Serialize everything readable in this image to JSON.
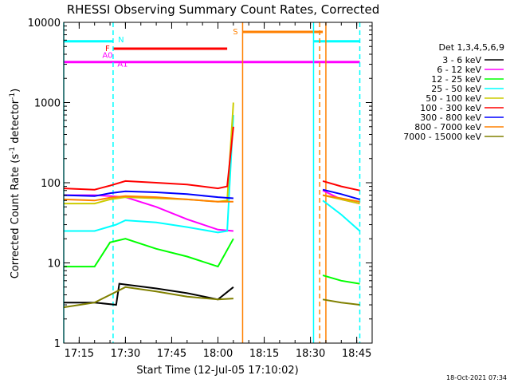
{
  "chart_data": {
    "type": "line",
    "title": "RHESSI Observing Summary Count Rates, Corrected",
    "xlabel": "Start Time (12-Jul-05 17:10:02)",
    "ylabel_prefix": "Corrected Count Rate (s",
    "ylabel_mid": " detector",
    "ylabel_suffix": ")",
    "ylabel_sup": "-1",
    "y_scale": "log",
    "ylim": [
      1,
      10000
    ],
    "xlim": [
      "17:10",
      "18:50"
    ],
    "x_ticks": [
      "17:15",
      "17:30",
      "17:45",
      "18:00",
      "18:15",
      "18:30",
      "18:45"
    ],
    "y_ticks": [
      "1",
      "10",
      "100",
      "1000",
      "10000"
    ],
    "grid": false,
    "legend_title": "Det 1,3,4,5,6,9",
    "legend_position": "right",
    "gaps": [
      [
        "18:07",
        "18:33"
      ]
    ],
    "series": [
      {
        "name": "3 - 6 keV",
        "color": "#000000",
        "x": [
          "17:10",
          "17:20",
          "17:27",
          "17:28",
          "17:40",
          "17:50",
          "18:00",
          "18:05"
        ],
        "y": [
          3.2,
          3.2,
          3.0,
          5.5,
          4.8,
          4.2,
          3.5,
          5.0
        ]
      },
      {
        "name": "6 - 12 keV",
        "color": "#ff00ff",
        "x": [
          "17:10",
          "17:20",
          "17:25",
          "17:30",
          "17:40",
          "17:50",
          "18:00",
          "18:05",
          "18:34",
          "18:40",
          "18:46"
        ],
        "y": [
          70,
          70,
          68,
          66,
          50,
          35,
          26,
          25,
          80,
          62,
          55
        ]
      },
      {
        "name": "12 - 25 keV",
        "color": "#00ff00",
        "x": [
          "17:10",
          "17:20",
          "17:25",
          "17:30",
          "17:40",
          "17:50",
          "18:00",
          "18:05",
          "18:34",
          "18:40",
          "18:46"
        ],
        "y": [
          9,
          9,
          18,
          20,
          15,
          12,
          9,
          20,
          7,
          6,
          5.5
        ]
      },
      {
        "name": "25 - 50 keV",
        "color": "#00ffff",
        "x": [
          "17:10",
          "17:20",
          "17:27",
          "17:30",
          "17:40",
          "17:50",
          "18:00",
          "18:03",
          "18:05",
          "18:34",
          "18:40",
          "18:46"
        ],
        "y": [
          25,
          25,
          30,
          34,
          32,
          28,
          24,
          25,
          700,
          60,
          40,
          25
        ]
      },
      {
        "name": "50 - 100 keV",
        "color": "#cccc00",
        "x": [
          "17:10",
          "17:20",
          "17:25",
          "17:30",
          "17:40",
          "17:50",
          "18:00",
          "18:03",
          "18:05",
          "18:34",
          "18:40",
          "18:46"
        ],
        "y": [
          55,
          55,
          62,
          66,
          64,
          62,
          58,
          60,
          1000,
          70,
          62,
          55
        ]
      },
      {
        "name": "100 - 300 keV",
        "color": "#ff0000",
        "x": [
          "17:10",
          "17:20",
          "17:25",
          "17:30",
          "17:40",
          "17:50",
          "18:00",
          "18:03",
          "18:05",
          "18:34",
          "18:40",
          "18:46"
        ],
        "y": [
          85,
          82,
          92,
          105,
          100,
          95,
          85,
          90,
          500,
          105,
          90,
          80
        ]
      },
      {
        "name": "300 - 800 keV",
        "color": "#0000ff",
        "x": [
          "17:10",
          "17:20",
          "17:25",
          "17:30",
          "17:40",
          "17:50",
          "18:00",
          "18:05",
          "18:34",
          "18:40",
          "18:46"
        ],
        "y": [
          70,
          68,
          74,
          78,
          76,
          72,
          66,
          64,
          82,
          72,
          62
        ]
      },
      {
        "name": "800 - 7000 keV",
        "color": "#ff8000",
        "x": [
          "17:10",
          "17:20",
          "17:25",
          "17:30",
          "17:40",
          "17:50",
          "18:00",
          "18:05",
          "18:34",
          "18:40",
          "18:46"
        ],
        "y": [
          62,
          60,
          65,
          68,
          66,
          62,
          58,
          58,
          70,
          64,
          58
        ]
      },
      {
        "name": "7000 - 15000 keV",
        "color": "#808000",
        "x": [
          "17:10",
          "17:20",
          "17:25",
          "17:30",
          "17:40",
          "17:50",
          "18:00",
          "18:05",
          "18:34",
          "18:40",
          "18:46"
        ],
        "y": [
          2.8,
          3.2,
          4,
          5.0,
          4.4,
          3.8,
          3.5,
          3.6,
          3.5,
          3.2,
          3.0
        ]
      }
    ],
    "flags": [
      {
        "label": "N",
        "color": "#00ffff",
        "segments": [
          [
            "17:10",
            "17:26"
          ],
          [
            "18:31",
            "18:46"
          ]
        ],
        "level": 5800
      },
      {
        "label": "S",
        "color": "#ff8000",
        "segments": [
          [
            "18:08",
            "18:34"
          ]
        ],
        "level": 7600
      },
      {
        "label": "F",
        "color": "#ff0000",
        "segments": [
          [
            "17:26",
            "18:03"
          ]
        ],
        "level": 4700
      },
      {
        "label": "A0",
        "color": "#ff00ff",
        "segments": [
          [
            "17:10",
            "18:46"
          ]
        ],
        "level": 3200
      },
      {
        "label": "A1",
        "color": "#ff00ff",
        "segments": [],
        "level": 3200
      }
    ],
    "vlines": [
      {
        "x": "17:10",
        "color": "#00ffff",
        "style": "solid"
      },
      {
        "x": "17:26",
        "color": "#00ffff",
        "style": "dashed"
      },
      {
        "x": "18:08",
        "color": "#ff8000",
        "style": "solid"
      },
      {
        "x": "18:31",
        "color": "#00ffff",
        "style": "solid"
      },
      {
        "x": "18:33",
        "color": "#ff8000",
        "style": "dashed"
      },
      {
        "x": "18:35",
        "color": "#ff8000",
        "style": "solid"
      },
      {
        "x": "18:46",
        "color": "#00ffff",
        "style": "dashed"
      }
    ],
    "footer": "18-Oct-2021 07:34"
  }
}
